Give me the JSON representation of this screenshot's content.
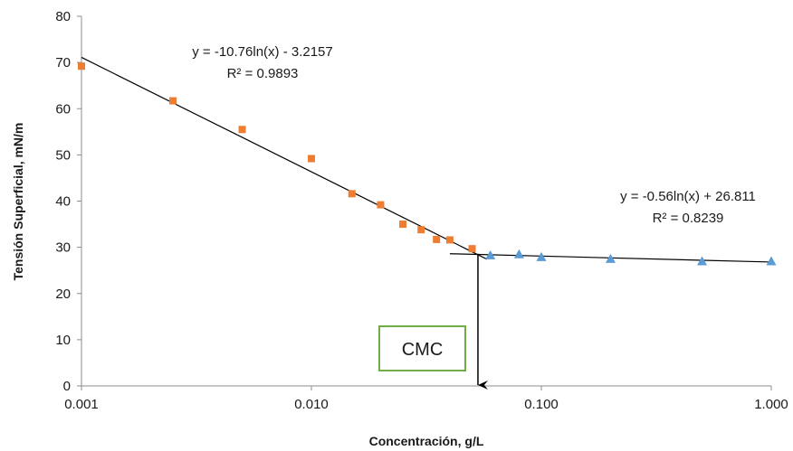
{
  "chart_data": {
    "type": "scatter",
    "xlabel": "Concentración, g/L",
    "ylabel": "Tensión Superficial, mN/m",
    "xscale": "log",
    "xlim": [
      0.001,
      1.0
    ],
    "ylim": [
      0,
      80
    ],
    "x_ticks": [
      0.001,
      0.01,
      0.1,
      1.0
    ],
    "x_tick_labels": [
      "0.001",
      "0.010",
      "0.100",
      "1.000"
    ],
    "y_ticks": [
      0,
      10,
      20,
      30,
      40,
      50,
      60,
      70,
      80
    ],
    "y_tick_labels": [
      "0",
      "10",
      "20",
      "30",
      "40",
      "50",
      "60",
      "70",
      "80"
    ],
    "grid": false,
    "series": [
      {
        "marker": "square",
        "color": "#ED7D31",
        "points": [
          [
            0.001,
            69.2
          ],
          [
            0.0025,
            61.7
          ],
          [
            0.005,
            55.5
          ],
          [
            0.01,
            49.2
          ],
          [
            0.015,
            41.6
          ],
          [
            0.02,
            39.2
          ],
          [
            0.025,
            35.0
          ],
          [
            0.03,
            33.8
          ],
          [
            0.035,
            31.7
          ],
          [
            0.04,
            31.6
          ],
          [
            0.05,
            29.7
          ]
        ]
      },
      {
        "marker": "triangle",
        "color": "#5B9BD5",
        "points": [
          [
            0.06,
            28.3
          ],
          [
            0.08,
            28.5
          ],
          [
            0.1,
            27.9
          ],
          [
            0.2,
            27.5
          ],
          [
            0.5,
            27.0
          ],
          [
            1.0,
            27.0
          ]
        ]
      }
    ],
    "trendlines": [
      {
        "a": -10.76,
        "b": -3.2157,
        "x_range": [
          0.001,
          0.058
        ],
        "equation": "y = -10.76ln(x) - 3.2157",
        "r2": "R² = 0.9893"
      },
      {
        "a": -0.56,
        "b": 26.811,
        "x_range": [
          0.04,
          1.0
        ],
        "equation": "y = -0.56ln(x) + 26.811",
        "r2": "R² = 0.8239"
      }
    ],
    "annotation": {
      "label": "CMC",
      "box_color": "#70AD47",
      "arrow_x": 0.053,
      "arrow_y_from": 28.6,
      "arrow_y_to": 0
    }
  }
}
